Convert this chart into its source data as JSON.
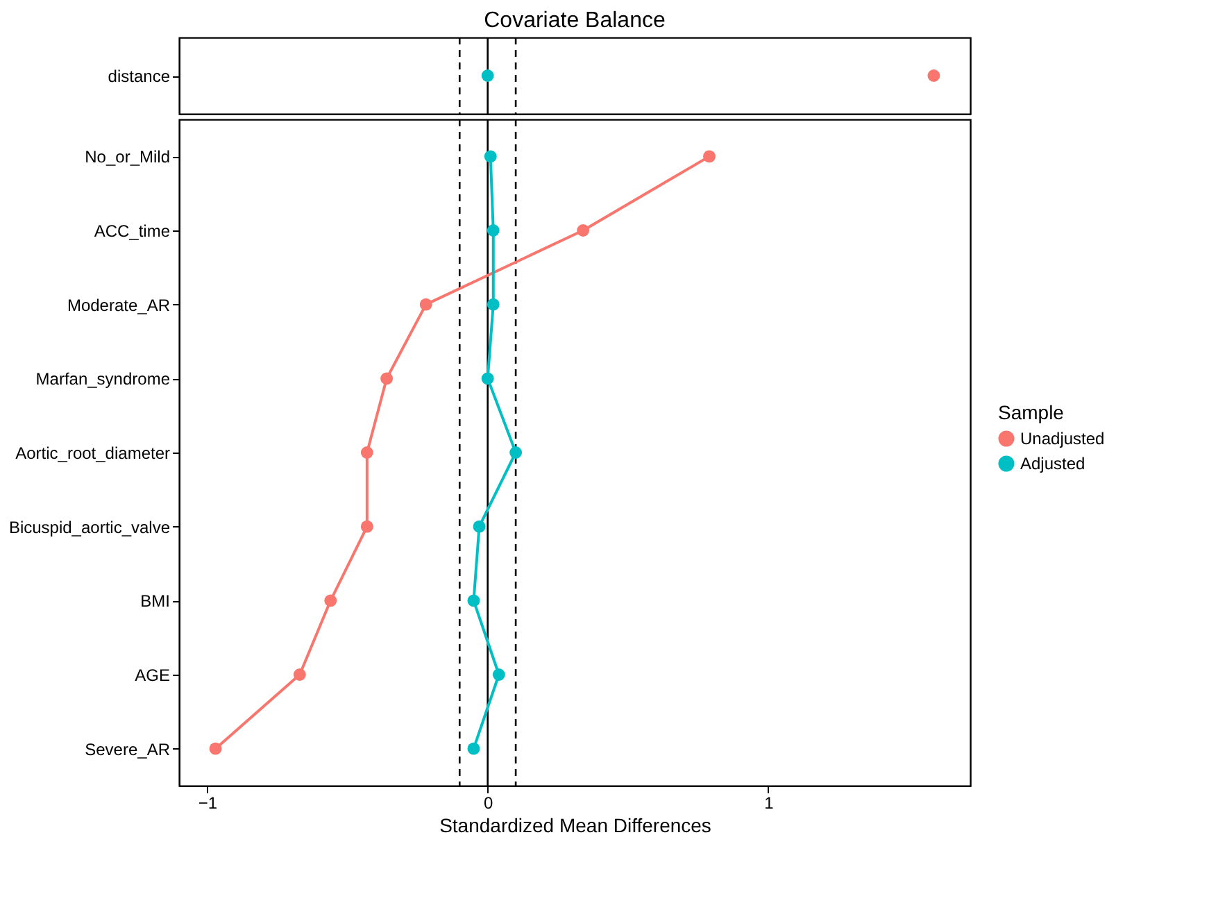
{
  "chart_data": [
    {
      "type": "scatter",
      "orientation": "horizontal",
      "title": "Covariate Balance",
      "categories": [
        "distance"
      ],
      "series": [
        {
          "color": "#f8766d",
          "values": [
            1.59
          ]
        },
        {
          "color": "#00bfc4",
          "values": [
            0.0
          ]
        }
      ],
      "xlim": [
        -1.1,
        1.72
      ],
      "xticks": [
        -1,
        0,
        1
      ],
      "tick_labels": "y",
      "legend": false,
      "marker": "circle",
      "ref_lines": [
        {
          "axis": "x",
          "value": 0,
          "line_style": "solid"
        },
        {
          "axis": "x",
          "value": -0.1,
          "line_style": "dashed"
        },
        {
          "axis": "x",
          "value": 0.1,
          "line_style": "dashed"
        }
      ]
    },
    {
      "type": "line",
      "orientation": "horizontal",
      "xlabel": "Standardized Mean Differences",
      "legend_title": "Sample",
      "legend": "right",
      "marker": "circle",
      "categories": [
        "No_or_Mild",
        "ACC_time",
        "Moderate_AR",
        "Marfan_syndrome",
        "Aortic_root_diameter",
        "Bicuspid_aortic_valve",
        "BMI",
        "AGE",
        "Severe_AR"
      ],
      "series": [
        {
          "name": "Unadjusted",
          "color": "#f8766d",
          "values": [
            0.79,
            0.34,
            -0.22,
            -0.36,
            -0.43,
            -0.43,
            -0.56,
            -0.67,
            -0.97
          ]
        },
        {
          "name": "Adjusted",
          "color": "#00bfc4",
          "values": [
            0.01,
            0.02,
            0.02,
            0.0,
            0.1,
            -0.03,
            -0.05,
            0.04,
            -0.05
          ]
        }
      ],
      "xlim": [
        -1.1,
        1.72
      ],
      "xticks": [
        -1,
        0,
        1
      ],
      "ref_lines": [
        {
          "axis": "x",
          "value": 0,
          "line_style": "solid"
        },
        {
          "axis": "x",
          "value": -0.1,
          "line_style": "dashed"
        },
        {
          "axis": "x",
          "value": 0.1,
          "line_style": "dashed"
        }
      ]
    }
  ]
}
